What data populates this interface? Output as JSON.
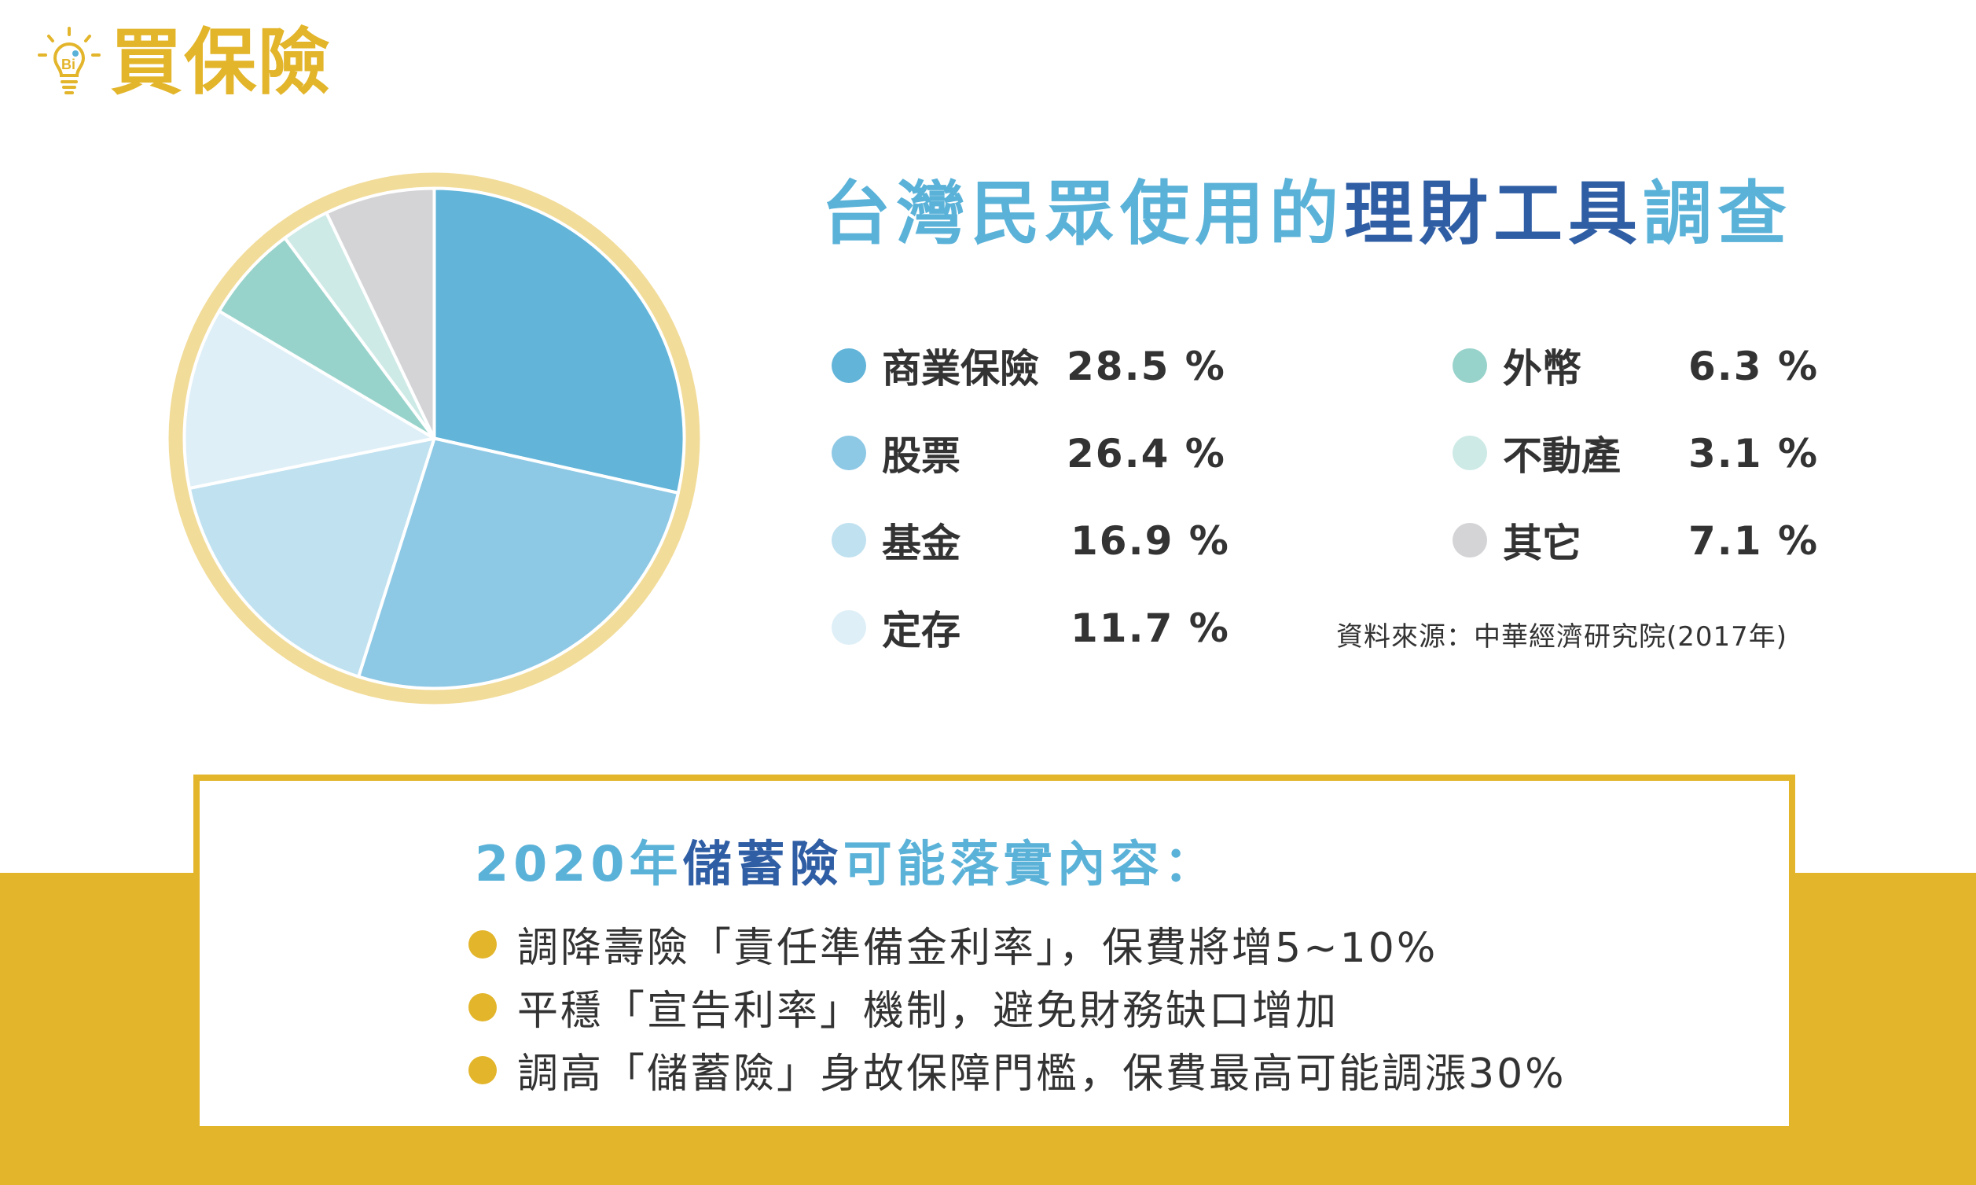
{
  "logo": {
    "text": "買保險",
    "icon": "lightbulb-icon",
    "color": "#E3B52B"
  },
  "title": {
    "part1": "台灣民眾使用的",
    "part2": "理財工具",
    "part3": "調查"
  },
  "colors": {
    "accent_light": "#5BB2D8",
    "accent_dark": "#2F5EA5",
    "gold": "#E3B52B",
    "ring": "#F2DC9A"
  },
  "chart_data": {
    "type": "pie",
    "title": "台灣民眾使用的理財工具調查",
    "unit": "%",
    "slices": [
      {
        "label": "商業保險",
        "value": 28.5,
        "display": "28.5 %",
        "color": "#62B4D9"
      },
      {
        "label": "股票",
        "value": 26.4,
        "display": "26.4 %",
        "color": "#8DC8E5"
      },
      {
        "label": "基金",
        "value": 16.9,
        "display": "16.9 %",
        "color": "#C0E1F0"
      },
      {
        "label": "定存",
        "value": 11.7,
        "display": "11.7 %",
        "color": "#DEEFF7"
      },
      {
        "label": "外幣",
        "value": 6.3,
        "display": "6.3 %",
        "color": "#98D3CB"
      },
      {
        "label": "不動產",
        "value": 3.1,
        "display": "3.1 %",
        "color": "#CDEAE6"
      },
      {
        "label": "其它",
        "value": 7.1,
        "display": "7.1 %",
        "color": "#D4D3D6"
      }
    ],
    "legend_placement": "right"
  },
  "source": "資料來源：中華經濟研究院(2017年)",
  "card": {
    "title_part1": "2020年",
    "title_part2": "儲蓄險",
    "title_part3": "可能落實內容：",
    "bullets": [
      "調降壽險「責任準備金利率」，保費將增5~10%",
      "平穩「宣告利率」機制，避免財務缺口增加",
      "調高「儲蓄險」身故保障門檻，保費最高可能調漲30%"
    ]
  }
}
